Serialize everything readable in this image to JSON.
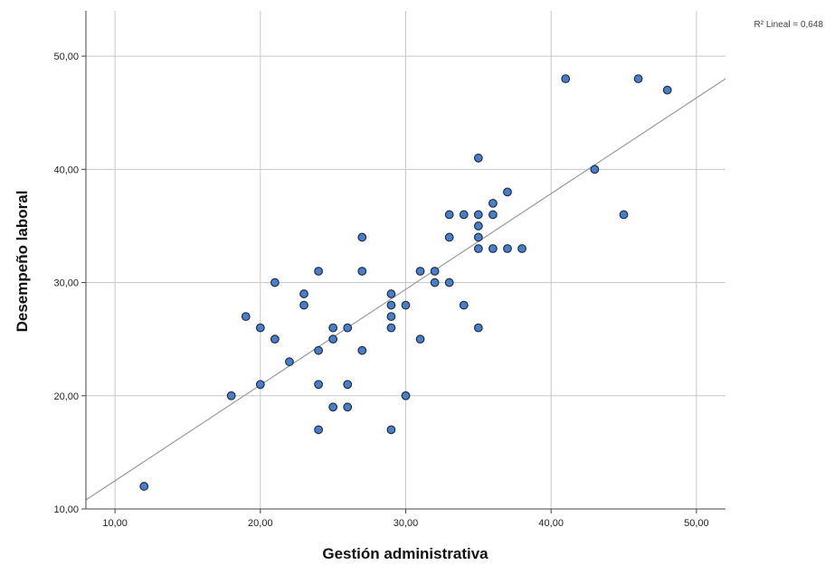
{
  "chart_data": {
    "type": "scatter",
    "title": "",
    "xlabel": "Gestión administrativa",
    "ylabel": "Desempeño laboral",
    "xlim": [
      8,
      52
    ],
    "ylim": [
      10,
      54
    ],
    "x_ticks": [
      "10,00",
      "20,00",
      "30,00",
      "40,00",
      "50,00"
    ],
    "y_ticks": [
      "10,00",
      "20,00",
      "30,00",
      "40,00",
      "50,00"
    ],
    "grid": true,
    "annotation": "R² Lineal = 0,648",
    "colors": {
      "point_fill": "#4a7fc8",
      "point_stroke": "#1e2e44",
      "fit_line": "#9a9a9a",
      "grid": "#c8c8c8"
    },
    "fit_line": {
      "x": [
        8,
        52
      ],
      "y": [
        10.8,
        48
      ]
    },
    "series": [
      {
        "points": [
          [
            12,
            12
          ],
          [
            18,
            20
          ],
          [
            19,
            27
          ],
          [
            20,
            26
          ],
          [
            20,
            21
          ],
          [
            21,
            30
          ],
          [
            21,
            25
          ],
          [
            22,
            23
          ],
          [
            23,
            29
          ],
          [
            23,
            28
          ],
          [
            24,
            31
          ],
          [
            24,
            24
          ],
          [
            24,
            21
          ],
          [
            24,
            17
          ],
          [
            25,
            26
          ],
          [
            25,
            25
          ],
          [
            25,
            19
          ],
          [
            26,
            26
          ],
          [
            26,
            21
          ],
          [
            26,
            19
          ],
          [
            27,
            34
          ],
          [
            27,
            31
          ],
          [
            27,
            24
          ],
          [
            29,
            29
          ],
          [
            29,
            28
          ],
          [
            29,
            27
          ],
          [
            29,
            26
          ],
          [
            29,
            17
          ],
          [
            30,
            28
          ],
          [
            30,
            20
          ],
          [
            31,
            31
          ],
          [
            31,
            25
          ],
          [
            32,
            31
          ],
          [
            32,
            30
          ],
          [
            33,
            36
          ],
          [
            33,
            34
          ],
          [
            33,
            30
          ],
          [
            34,
            36
          ],
          [
            34,
            28
          ],
          [
            35,
            41
          ],
          [
            35,
            36
          ],
          [
            35,
            35
          ],
          [
            35,
            34
          ],
          [
            35,
            33
          ],
          [
            35,
            26
          ],
          [
            36,
            37
          ],
          [
            36,
            36
          ],
          [
            36,
            33
          ],
          [
            37,
            38
          ],
          [
            37,
            33
          ],
          [
            38,
            33
          ],
          [
            41,
            48
          ],
          [
            43,
            40
          ],
          [
            45,
            36
          ],
          [
            46,
            48
          ],
          [
            48,
            47
          ]
        ]
      }
    ]
  }
}
